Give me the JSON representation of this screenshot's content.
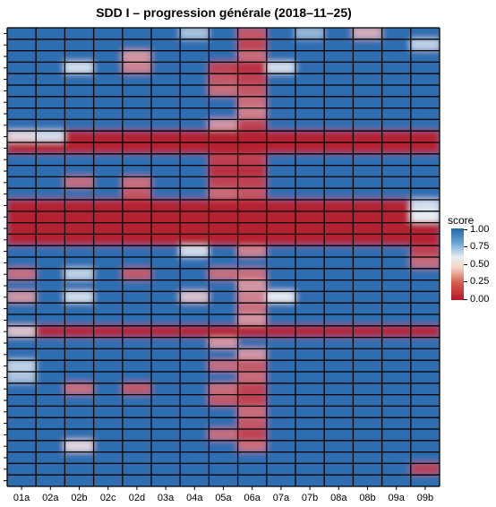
{
  "chart_data": {
    "type": "heatmap",
    "title": "SDD I – progression générale (2018–11–25)",
    "x_categories": [
      "01a",
      "02a",
      "02b",
      "02c",
      "02d",
      "03a",
      "04a",
      "05a",
      "06a",
      "07a",
      "07b",
      "08a",
      "08b",
      "09a",
      "09b"
    ],
    "n_rows": 40,
    "zlim": [
      0,
      1
    ],
    "legend": {
      "title": "score",
      "position": "right",
      "ticks": [
        "1.00",
        "0.75",
        "0.50",
        "0.25",
        "0.00"
      ],
      "colors": [
        "#2166ac",
        "#e8eef4",
        "#b2182b"
      ]
    },
    "full_red_rows": [
      9,
      10,
      15,
      16,
      17,
      18,
      26
    ],
    "cells_low": [
      {
        "r": 0,
        "c": 8,
        "v": 0.15
      },
      {
        "r": 1,
        "c": 8,
        "v": 0.1
      },
      {
        "r": 2,
        "c": 8,
        "v": 0.2
      },
      {
        "r": 2,
        "c": 4,
        "v": 0.3
      },
      {
        "r": 3,
        "c": 4,
        "v": 0.25
      },
      {
        "r": 3,
        "c": 7,
        "v": 0.1
      },
      {
        "r": 3,
        "c": 8,
        "v": 0.05
      },
      {
        "r": 4,
        "c": 7,
        "v": 0.15
      },
      {
        "r": 4,
        "c": 8,
        "v": 0.1
      },
      {
        "r": 5,
        "c": 7,
        "v": 0.2
      },
      {
        "r": 5,
        "c": 8,
        "v": 0.15
      },
      {
        "r": 6,
        "c": 8,
        "v": 0.2
      },
      {
        "r": 7,
        "c": 8,
        "v": 0.25
      },
      {
        "r": 8,
        "c": 7,
        "v": 0.3
      },
      {
        "r": 8,
        "c": 8,
        "v": 0.1
      },
      {
        "r": 11,
        "c": 7,
        "v": 0.1
      },
      {
        "r": 11,
        "c": 8,
        "v": 0.1
      },
      {
        "r": 12,
        "c": 7,
        "v": 0.05
      },
      {
        "r": 12,
        "c": 8,
        "v": 0.05
      },
      {
        "r": 13,
        "c": 2,
        "v": 0.2
      },
      {
        "r": 13,
        "c": 4,
        "v": 0.2
      },
      {
        "r": 13,
        "c": 7,
        "v": 0.1
      },
      {
        "r": 13,
        "c": 8,
        "v": 0.1
      },
      {
        "r": 14,
        "c": 4,
        "v": 0.15
      },
      {
        "r": 14,
        "c": 7,
        "v": 0.2
      },
      {
        "r": 14,
        "c": 8,
        "v": 0.15
      },
      {
        "r": 19,
        "c": 14,
        "v": 0.1
      },
      {
        "r": 19,
        "c": 8,
        "v": 0.25
      },
      {
        "r": 20,
        "c": 14,
        "v": 0.2
      },
      {
        "r": 21,
        "c": 0,
        "v": 0.2
      },
      {
        "r": 21,
        "c": 4,
        "v": 0.15
      },
      {
        "r": 21,
        "c": 7,
        "v": 0.2
      },
      {
        "r": 21,
        "c": 8,
        "v": 0.2
      },
      {
        "r": 22,
        "c": 8,
        "v": 0.3
      },
      {
        "r": 23,
        "c": 0,
        "v": 0.3
      },
      {
        "r": 23,
        "c": 8,
        "v": 0.25
      },
      {
        "r": 24,
        "c": 8,
        "v": 0.2
      },
      {
        "r": 25,
        "c": 8,
        "v": 0.3
      },
      {
        "r": 27,
        "c": 7,
        "v": 0.3
      },
      {
        "r": 28,
        "c": 8,
        "v": 0.3
      },
      {
        "r": 29,
        "c": 7,
        "v": 0.2
      },
      {
        "r": 29,
        "c": 8,
        "v": 0.15
      },
      {
        "r": 30,
        "c": 8,
        "v": 0.2
      },
      {
        "r": 31,
        "c": 2,
        "v": 0.2
      },
      {
        "r": 31,
        "c": 4,
        "v": 0.15
      },
      {
        "r": 31,
        "c": 7,
        "v": 0.2
      },
      {
        "r": 31,
        "c": 8,
        "v": 0.1
      },
      {
        "r": 32,
        "c": 7,
        "v": 0.15
      },
      {
        "r": 32,
        "c": 8,
        "v": 0.1
      },
      {
        "r": 33,
        "c": 8,
        "v": 0.2
      },
      {
        "r": 34,
        "c": 8,
        "v": 0.15
      },
      {
        "r": 35,
        "c": 7,
        "v": 0.2
      },
      {
        "r": 35,
        "c": 8,
        "v": 0.1
      },
      {
        "r": 36,
        "c": 8,
        "v": 0.2
      },
      {
        "r": 38,
        "c": 14,
        "v": 0.1
      }
    ],
    "cells_light": [
      {
        "r": 0,
        "c": 6,
        "v": 0.65
      },
      {
        "r": 0,
        "c": 10,
        "v": 0.7
      },
      {
        "r": 0,
        "c": 12,
        "v": 0.35
      },
      {
        "r": 1,
        "c": 14,
        "v": 0.6
      },
      {
        "r": 3,
        "c": 2,
        "v": 0.55
      },
      {
        "r": 3,
        "c": 9,
        "v": 0.55
      },
      {
        "r": 9,
        "c": 0,
        "v": 0.45
      },
      {
        "r": 9,
        "c": 1,
        "v": 0.55
      },
      {
        "r": 16,
        "c": 14,
        "v": 0.5
      },
      {
        "r": 15,
        "c": 14,
        "v": 0.55
      },
      {
        "r": 19,
        "c": 6,
        "v": 0.55
      },
      {
        "r": 21,
        "c": 2,
        "v": 0.6
      },
      {
        "r": 23,
        "c": 2,
        "v": 0.55
      },
      {
        "r": 23,
        "c": 6,
        "v": 0.4
      },
      {
        "r": 23,
        "c": 9,
        "v": 0.5
      },
      {
        "r": 26,
        "c": 0,
        "v": 0.4
      },
      {
        "r": 29,
        "c": 0,
        "v": 0.6
      },
      {
        "r": 30,
        "c": 0,
        "v": 0.65
      },
      {
        "r": 36,
        "c": 2,
        "v": 0.45
      }
    ]
  }
}
